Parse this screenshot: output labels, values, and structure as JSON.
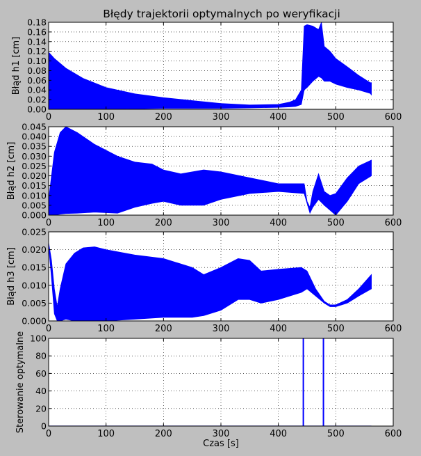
{
  "title": "Błędy trajektorii optymalnych po weryfikacji",
  "colors": {
    "figure_bg": "#bfbfbf",
    "axes_bg": "#ffffff",
    "series": "#0000ff",
    "grid": "#000000"
  },
  "chart_data": [
    {
      "type": "area",
      "title": "Błędy trajektorii optymalnych po weryfikacji",
      "xlabel": "",
      "ylabel": "Błąd h1 [cm]",
      "xlim": [
        0,
        600
      ],
      "ylim": [
        0,
        0.18
      ],
      "xticks": [
        0,
        100,
        200,
        300,
        400,
        500,
        600
      ],
      "yticks": [
        0.0,
        0.02,
        0.04,
        0.06,
        0.08,
        0.1,
        0.12,
        0.14,
        0.16,
        0.18
      ],
      "ytick_labels": [
        "0.00",
        "0.02",
        "0.04",
        "0.06",
        "0.08",
        "0.10",
        "0.12",
        "0.14",
        "0.16",
        "0.18"
      ],
      "grid": true,
      "series": [
        {
          "x": [
            0,
            10,
            30,
            60,
            100,
            150,
            200,
            250,
            300,
            350,
            400,
            420,
            430,
            440,
            445,
            450,
            460,
            470,
            475,
            480,
            490,
            500,
            520,
            540,
            560,
            562
          ],
          "upper": [
            0.118,
            0.105,
            0.085,
            0.064,
            0.045,
            0.032,
            0.024,
            0.018,
            0.012,
            0.009,
            0.01,
            0.015,
            0.02,
            0.04,
            0.172,
            0.175,
            0.172,
            0.165,
            0.18,
            0.13,
            0.12,
            0.105,
            0.088,
            0.07,
            0.055,
            0.055
          ],
          "lower": [
            0.0,
            0.0,
            0.0,
            0.0,
            0.0,
            0.001,
            0.002,
            0.002,
            0.002,
            0.003,
            0.004,
            0.005,
            0.006,
            0.01,
            0.04,
            0.045,
            0.058,
            0.068,
            0.065,
            0.058,
            0.058,
            0.052,
            0.045,
            0.04,
            0.033,
            0.03
          ]
        }
      ]
    },
    {
      "type": "area",
      "title": "",
      "xlabel": "",
      "ylabel": "Błąd h2 [cm]",
      "xlim": [
        0,
        600
      ],
      "ylim": [
        0,
        0.045
      ],
      "xticks": [
        0,
        100,
        200,
        300,
        400,
        500,
        600
      ],
      "yticks": [
        0.0,
        0.005,
        0.01,
        0.015,
        0.02,
        0.025,
        0.03,
        0.035,
        0.04,
        0.045
      ],
      "ytick_labels": [
        "0.000",
        "0.005",
        "0.010",
        "0.015",
        "0.020",
        "0.025",
        "0.030",
        "0.035",
        "0.040",
        "0.045"
      ],
      "grid": true,
      "series": [
        {
          "x": [
            0,
            10,
            20,
            30,
            50,
            80,
            120,
            150,
            180,
            200,
            230,
            270,
            300,
            350,
            400,
            445,
            450,
            455,
            460,
            470,
            480,
            490,
            500,
            520,
            540,
            562
          ],
          "upper": [
            0.008,
            0.032,
            0.042,
            0.045,
            0.042,
            0.036,
            0.03,
            0.027,
            0.026,
            0.023,
            0.021,
            0.023,
            0.022,
            0.019,
            0.016,
            0.016,
            0.007,
            0.004,
            0.012,
            0.021,
            0.012,
            0.01,
            0.011,
            0.019,
            0.025,
            0.028
          ],
          "lower": [
            0.0,
            0.0,
            0.0005,
            0.0008,
            0.001,
            0.0015,
            0.001,
            0.004,
            0.006,
            0.007,
            0.005,
            0.005,
            0.008,
            0.011,
            0.012,
            0.011,
            0.006,
            0.001,
            0.004,
            0.008,
            0.005,
            0.0025,
            0.0,
            0.007,
            0.016,
            0.02
          ]
        }
      ]
    },
    {
      "type": "area",
      "title": "",
      "xlabel": "",
      "ylabel": "Błąd h3 [cm]",
      "xlim": [
        0,
        600
      ],
      "ylim": [
        0,
        0.025
      ],
      "xticks": [
        0,
        100,
        200,
        300,
        400,
        500,
        600
      ],
      "yticks": [
        0.0,
        0.005,
        0.01,
        0.015,
        0.02,
        0.025
      ],
      "ytick_labels": [
        "0.000",
        "0.005",
        "0.010",
        "0.015",
        "0.020",
        "0.025"
      ],
      "grid": true,
      "series": [
        {
          "x": [
            0,
            5,
            10,
            15,
            20,
            30,
            45,
            60,
            80,
            100,
            150,
            200,
            250,
            270,
            300,
            330,
            350,
            370,
            400,
            440,
            450,
            465,
            480,
            490,
            500,
            520,
            540,
            562
          ],
          "upper": [
            0.022,
            0.017,
            0.009,
            0.004,
            0.009,
            0.016,
            0.019,
            0.0205,
            0.0208,
            0.02,
            0.0185,
            0.0175,
            0.015,
            0.013,
            0.015,
            0.0175,
            0.017,
            0.014,
            0.0145,
            0.015,
            0.014,
            0.009,
            0.0055,
            0.0045,
            0.0045,
            0.006,
            0.009,
            0.013
          ],
          "lower": [
            0.021,
            0.012,
            0.002,
            0.0,
            0.0,
            0.0005,
            0.0,
            0.0,
            0.0,
            0.0,
            0.0005,
            0.001,
            0.001,
            0.0015,
            0.003,
            0.006,
            0.006,
            0.005,
            0.006,
            0.008,
            0.009,
            0.007,
            0.005,
            0.004,
            0.004,
            0.005,
            0.007,
            0.009
          ]
        }
      ]
    },
    {
      "type": "line",
      "title": "",
      "xlabel": "Czas [s]",
      "ylabel": "Sterowanie optymalne",
      "xlim": [
        0,
        600
      ],
      "ylim": [
        0,
        100
      ],
      "xticks": [
        0,
        100,
        200,
        300,
        400,
        500,
        600
      ],
      "yticks": [
        0,
        20,
        40,
        60,
        80,
        100
      ],
      "ytick_labels": [
        "0",
        "20",
        "40",
        "60",
        "80",
        "100"
      ],
      "grid": true,
      "series": [
        {
          "x": [
            0,
            443,
            443,
            444,
            444,
            478,
            478,
            479,
            479,
            562
          ],
          "y": [
            0,
            0,
            100,
            100,
            0,
            0,
            100,
            100,
            0,
            0
          ]
        }
      ]
    }
  ]
}
